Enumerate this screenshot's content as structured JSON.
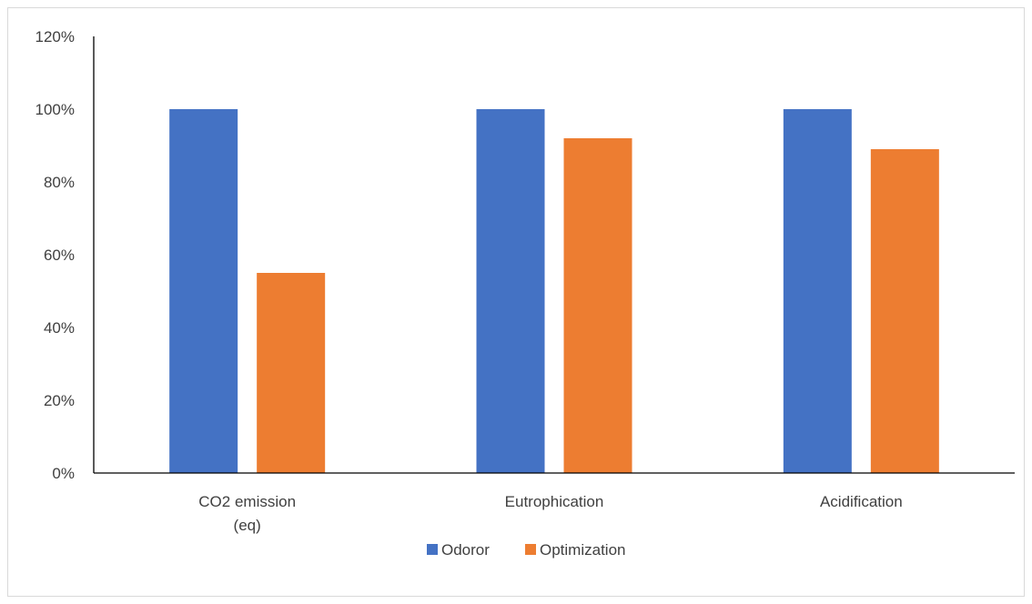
{
  "chart_data": {
    "type": "bar",
    "categories": [
      [
        "CO2 emission",
        "(eq)"
      ],
      [
        "Eutrophication"
      ],
      [
        "Acidification"
      ]
    ],
    "series": [
      {
        "name": "Odoror",
        "color": "#4472C4",
        "values": [
          100,
          100,
          100
        ]
      },
      {
        "name": "Optimization",
        "color": "#ED7D31",
        "values": [
          55,
          92,
          89
        ]
      }
    ],
    "ylim": [
      0,
      120
    ],
    "y_ticks": [
      0,
      20,
      40,
      60,
      80,
      100,
      120
    ],
    "y_tick_suffix": "%",
    "grid": false,
    "legend_position": "bottom"
  }
}
